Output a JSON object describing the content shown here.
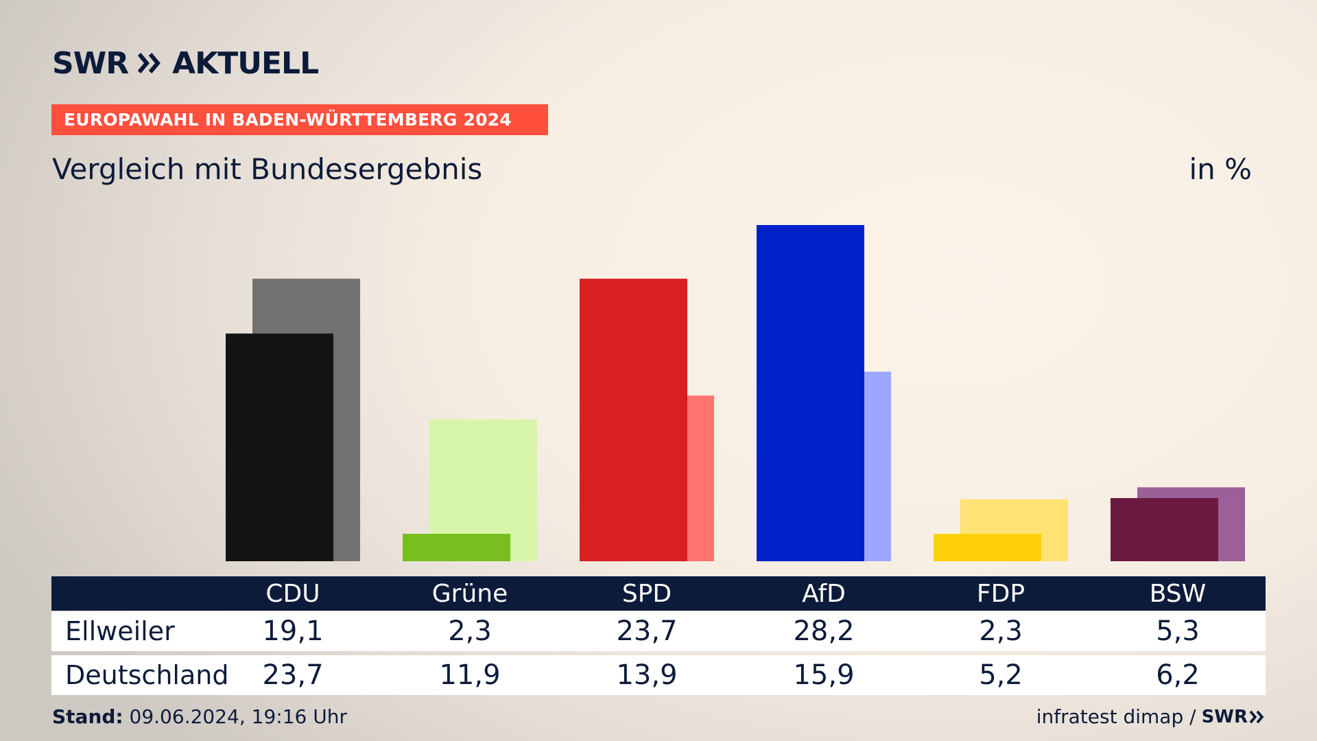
{
  "brand": {
    "name": "SWR",
    "suffix": "AKTUELL"
  },
  "kicker": "EUROPAWAHL IN BADEN-WÜRTTEMBERG 2024",
  "colors": {
    "kicker_bg": "#ff4f3d",
    "navy": "#0d1b3a"
  },
  "chart_data": {
    "type": "bar",
    "title": "Vergleich mit Bundesergebnis",
    "unit_label": "in %",
    "categories": [
      "CDU",
      "Grüne",
      "SPD",
      "AfD",
      "FDP",
      "BSW"
    ],
    "series": [
      {
        "name": "Ellweiler",
        "values": [
          19.1,
          2.3,
          23.7,
          28.2,
          2.3,
          5.3
        ],
        "colors": [
          "#141414",
          "#78be1e",
          "#d7201f",
          "#0021c8",
          "#ffd10a",
          "#6a1a41"
        ]
      },
      {
        "name": "Deutschland",
        "values": [
          23.7,
          11.9,
          13.9,
          15.9,
          5.2,
          6.2
        ],
        "colors": [
          "#737170",
          "#d6f5a9",
          "#ff7470",
          "#9ca8ff",
          "#ffe475",
          "#9c5f98"
        ]
      }
    ],
    "ylim": [
      0,
      28.2
    ],
    "grid": false
  },
  "table": {
    "rows": [
      {
        "label": "Ellweiler",
        "values": [
          "19,1",
          "2,3",
          "23,7",
          "28,2",
          "2,3",
          "5,3"
        ]
      },
      {
        "label": "Deutschland",
        "values": [
          "23,7",
          "11,9",
          "13,9",
          "15,9",
          "5,2",
          "6,2"
        ]
      }
    ]
  },
  "footer": {
    "stand_label": "Stand:",
    "stand_value": "09.06.2024, 19:16 Uhr",
    "source": "infratest dimap /",
    "source_logo": "SWR"
  }
}
